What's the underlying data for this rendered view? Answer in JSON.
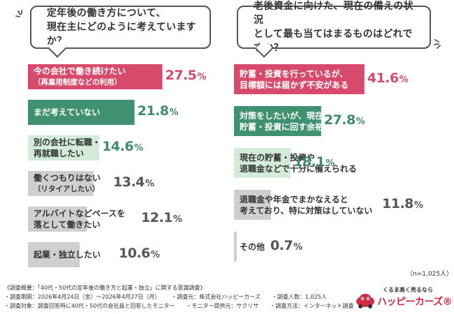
{
  "colors": {
    "pink": "#d84a6b",
    "green": "#3f9171",
    "light_green": "#d5ebd9",
    "gray": "#cfcfcf",
    "green_value": "#3d8c6c",
    "gray_value": "#555555",
    "brand": "#cc2d44"
  },
  "left_question": "定年後の働き方について、\n現在主にどのように考えていますか？",
  "right_question": "老後資金に向けた、現在の備えの状況\nとして最も当てはまるものはどれですか？",
  "chart_data": [
    {
      "type": "bar",
      "orientation": "horizontal",
      "categories": [
        "今の会社で働き続けたい（再雇用制度などの利用）",
        "まだ考えていない",
        "別の会社に転職・再就職したい",
        "働くつもりはない（リタイアしたい）",
        "アルバイトなどペースを落として働きたい",
        "起業・独立したい"
      ],
      "values": [
        27.5,
        21.8,
        14.6,
        13.4,
        12.1,
        10.6
      ],
      "unit": "%",
      "xlim": [
        0,
        30
      ],
      "bars": [
        {
          "label": "今の会社で働き続けたい",
          "sub": "（再雇用制度などの利用）",
          "value_int": "27.5",
          "style": "pink"
        },
        {
          "label": "まだ考えていない",
          "sub": "",
          "value_int": "21.8",
          "style": "green"
        },
        {
          "label": "別の会社に転職・\n再就職したい",
          "sub": "",
          "value_int": "14.6",
          "style": "light_green"
        },
        {
          "label": "働くつもりはない",
          "sub": "（リタイアしたい）",
          "value_int": "13.4",
          "style": "gray"
        },
        {
          "label": "アルバイトなどペースを\n落として働きたい",
          "sub": "",
          "value_int": "12.1",
          "style": "gray"
        },
        {
          "label": "起業・独立したい",
          "sub": "",
          "value_int": "10.6",
          "style": "gray"
        }
      ]
    },
    {
      "type": "bar",
      "orientation": "horizontal",
      "categories": [
        "貯蓄・投資を行っているが、目標額には届かず不安がある",
        "対策をしたいが、現在の収入では貯蓄・投資に回す余裕がない",
        "現在の貯蓄・投資や退職金などで十分に備えられる",
        "退職金や年金でまかなえると考えており、特に対策はしていない",
        "その他"
      ],
      "values": [
        41.6,
        27.8,
        18.1,
        11.8,
        0.7
      ],
      "unit": "%",
      "xlim": [
        0,
        45
      ],
      "bars": [
        {
          "label": "貯蓄・投資を行っているが、\n目標額には届かず不安がある",
          "sub": "",
          "value_int": "41.6",
          "style": "pink"
        },
        {
          "label": "対策をしたいが、現在の収入では\n貯蓄・投資に回す余裕がない",
          "sub": "",
          "value_int": "27.8",
          "style": "green"
        },
        {
          "label": "現在の貯蓄・投資や\n退職金などで十分に備えられる",
          "sub": "",
          "value_int": "18.1",
          "style": "light_green"
        },
        {
          "label": "退職金や年金でまかなえると\n考えており、特に対策はしていない",
          "sub": "",
          "value_int": "11.8",
          "style": "gray"
        },
        {
          "label": "その他",
          "sub": "",
          "value_int": "0.7",
          "style": "gray"
        }
      ]
    }
  ],
  "pct_sign": "%",
  "sample_note": "（n=1,025人）",
  "footer": {
    "overview": "《調査概要：「40代・50代の定年後の働き方と起業・独立」に関する意識調査》",
    "period": "・調査期間：2026年4月24日（金）〜2026年4月27日（月）",
    "source": "・調査元：株式会社ハッピーカーズ",
    "count": "・調査人数：1,025人",
    "target": "・調査対象：調査回答時に40代・50代の会社員と回答したモニター",
    "provider": "・モニター提供元：サクリサ",
    "method": "・調査方法：インターネット調査"
  },
  "logo": {
    "tagline": "くるま高く売るなら",
    "name": "ハッピーカーズ®"
  }
}
